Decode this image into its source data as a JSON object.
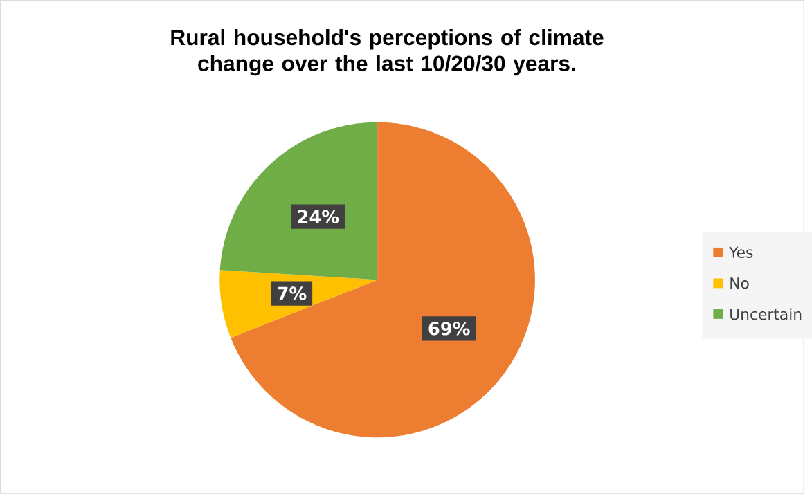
{
  "chart_data": {
    "type": "pie",
    "title": "Rural household's perceptions of climate change over the last 10/20/30 years.",
    "categories": [
      "Yes",
      "No",
      "Uncertain"
    ],
    "values": [
      69,
      7,
      24
    ],
    "colors": [
      "#ed7d31",
      "#ffc000",
      "#70ad47"
    ],
    "value_labels": [
      "69%",
      "7%",
      "24%"
    ],
    "legend": "right"
  }
}
